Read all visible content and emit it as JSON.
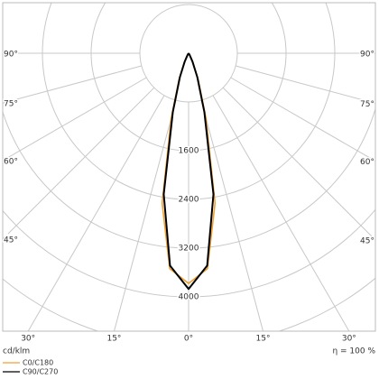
{
  "chart_data": {
    "type": "polar",
    "x": [
      -40,
      -35,
      -30,
      -25,
      -20,
      -15,
      -10,
      -5,
      0,
      5,
      10,
      15,
      20,
      25,
      30,
      35,
      40
    ],
    "series": [
      {
        "name": "C0/C180",
        "color": "#f0a030",
        "values": [
          0,
          10,
          50,
          170,
          460,
          1100,
          2500,
          3550,
          3780,
          3550,
          2500,
          1100,
          460,
          170,
          50,
          10,
          0
        ]
      },
      {
        "name": "C90/C270",
        "color": "#000000",
        "values": [
          0,
          10,
          40,
          150,
          420,
          1000,
          2350,
          3500,
          3870,
          3500,
          2350,
          1000,
          420,
          150,
          40,
          10,
          0
        ]
      }
    ],
    "rlim": [
      0,
      5600
    ],
    "rings": [
      800,
      1600,
      2400,
      3200,
      4000,
      4800,
      5600
    ],
    "yticks": [
      1600,
      2400,
      3200,
      4000
    ],
    "xticks": [
      {
        "value": -90,
        "label": "90°"
      },
      {
        "value": -75,
        "label": "75°"
      },
      {
        "value": -60,
        "label": "60°"
      },
      {
        "value": -45,
        "label": "45°"
      },
      {
        "value": -30,
        "label": "30°"
      },
      {
        "value": -15,
        "label": "15°"
      },
      {
        "value": 0,
        "label": "0°"
      },
      {
        "value": 15,
        "label": "15°"
      },
      {
        "value": 30,
        "label": "30°"
      },
      {
        "value": 45,
        "label": "45°"
      },
      {
        "value": 60,
        "label": "60°"
      },
      {
        "value": 75,
        "label": "75°"
      },
      {
        "value": 90,
        "label": "90°"
      }
    ],
    "unit_label": "cd/klm",
    "efficiency_label": "η = 100 %"
  }
}
